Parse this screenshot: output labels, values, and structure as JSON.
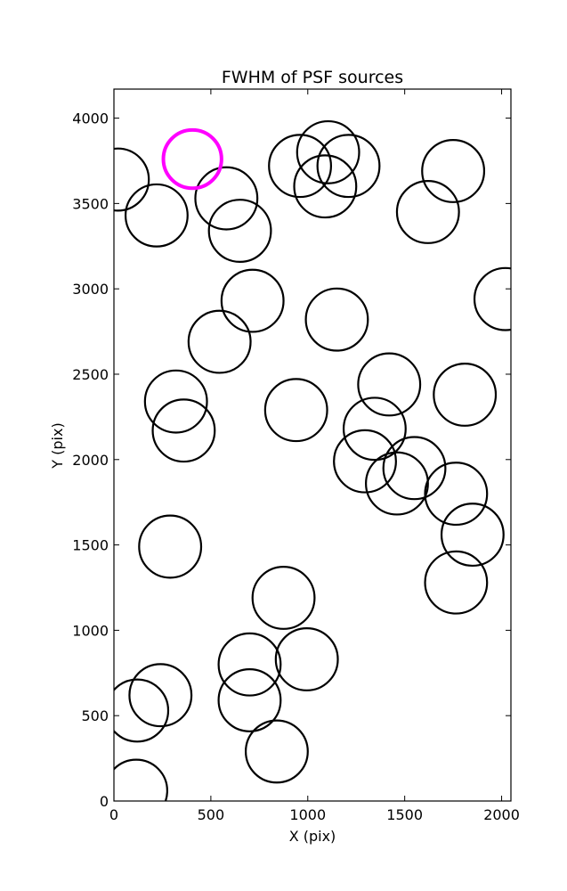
{
  "chart_data": {
    "type": "scatter",
    "title": "FWHM of PSF sources",
    "xlabel": "X (pix)",
    "ylabel": "Y (pix)",
    "xlim": [
      0,
      2048
    ],
    "ylim": [
      0,
      4170
    ],
    "x_ticks": [
      0,
      500,
      1000,
      1500,
      2000
    ],
    "y_ticks": [
      0,
      500,
      1000,
      1500,
      2000,
      2500,
      3000,
      3500,
      4000
    ],
    "grid": false,
    "legend": "none",
    "marker": "open-circle",
    "colors": {
      "default": "#000000",
      "highlight": "#ff00ff"
    },
    "series": [
      {
        "points": [
          {
            "x": 20,
            "y": 3640,
            "r": 160
          },
          {
            "x": 220,
            "y": 3430,
            "r": 160
          },
          {
            "x": 580,
            "y": 3530,
            "r": 160
          },
          {
            "x": 650,
            "y": 3340,
            "r": 160
          },
          {
            "x": 960,
            "y": 3720,
            "r": 160
          },
          {
            "x": 1105,
            "y": 3800,
            "r": 160
          },
          {
            "x": 1090,
            "y": 3600,
            "r": 160
          },
          {
            "x": 1210,
            "y": 3720,
            "r": 160
          },
          {
            "x": 1620,
            "y": 3450,
            "r": 160
          },
          {
            "x": 1750,
            "y": 3690,
            "r": 160
          },
          {
            "x": 715,
            "y": 2930,
            "r": 160
          },
          {
            "x": 545,
            "y": 2690,
            "r": 160
          },
          {
            "x": 1150,
            "y": 2820,
            "r": 160
          },
          {
            "x": 2020,
            "y": 2940,
            "r": 160
          },
          {
            "x": 320,
            "y": 2340,
            "r": 160
          },
          {
            "x": 360,
            "y": 2170,
            "r": 160
          },
          {
            "x": 940,
            "y": 2290,
            "r": 160
          },
          {
            "x": 1420,
            "y": 2440,
            "r": 160
          },
          {
            "x": 1810,
            "y": 2380,
            "r": 160
          },
          {
            "x": 1345,
            "y": 2180,
            "r": 160
          },
          {
            "x": 1295,
            "y": 1990,
            "r": 160
          },
          {
            "x": 1550,
            "y": 1950,
            "r": 160
          },
          {
            "x": 1460,
            "y": 1860,
            "r": 160
          },
          {
            "x": 1765,
            "y": 1800,
            "r": 160
          },
          {
            "x": 1850,
            "y": 1560,
            "r": 160
          },
          {
            "x": 290,
            "y": 1490,
            "r": 160
          },
          {
            "x": 875,
            "y": 1190,
            "r": 160
          },
          {
            "x": 1765,
            "y": 1280,
            "r": 160
          },
          {
            "x": 700,
            "y": 800,
            "r": 160
          },
          {
            "x": 995,
            "y": 830,
            "r": 160
          },
          {
            "x": 240,
            "y": 620,
            "r": 160
          },
          {
            "x": 120,
            "y": 530,
            "r": 160
          },
          {
            "x": 700,
            "y": 590,
            "r": 160
          },
          {
            "x": 840,
            "y": 290,
            "r": 160
          },
          {
            "x": 115,
            "y": 60,
            "r": 160
          }
        ]
      },
      {
        "highlight": true,
        "points": [
          {
            "x": 405,
            "y": 3760,
            "r": 150
          }
        ]
      }
    ]
  }
}
